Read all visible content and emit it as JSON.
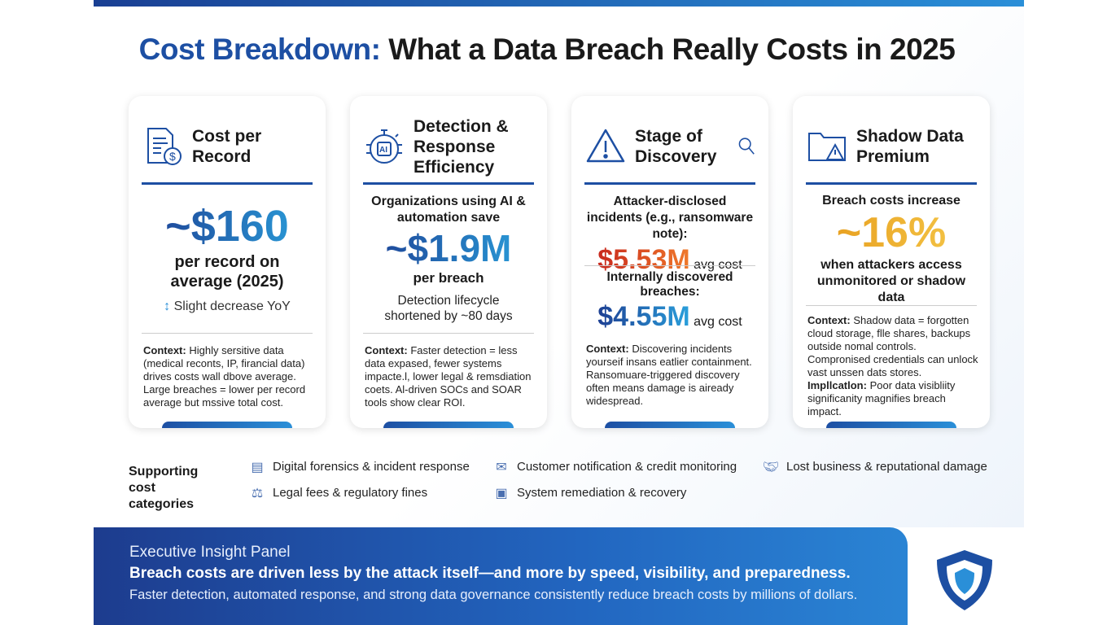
{
  "title": {
    "accent": "Cost Breakdown:",
    "rest": " What a Data Breach Really Costs in 2025"
  },
  "cards": [
    {
      "icon": "invoice-dollar-icon",
      "title": "Cost per Record",
      "value": "~$160",
      "sub": "per record on average (2025)",
      "trend_icon": "up-down-arrow-icon",
      "trend": "Slight decrease YoY",
      "context_label": "Context:",
      "context": " Highly sersitive data (medical reconts, IP, firancial data) drives costs wall dbove average. Large breaches = lower per record average but mssive total cost."
    },
    {
      "icon": "ai-stopwatch-icon",
      "title": "Detection & Response Efficiency",
      "intro": "Organizations using AI & automation save",
      "value": "~$1.9M",
      "sub": "per breach",
      "note": "Detection lifecycle shortened by ~80 days",
      "context_label": "Context:",
      "context": " Faster detection = less data expased, fewer systems impacte.l, lower legal & remsdiation coets. Al-driven SOCs and SOAR tools show clear ROI."
    },
    {
      "icon": "warning-magnifier-icon",
      "title": "Stage of Discovery",
      "intro1": "Attacker-disclosed incidents (e.g., ransomware note):",
      "value1": "$5.53M",
      "unit1": "avg cost",
      "intro2": "Internally discovered breaches:",
      "value2": "$4.55M",
      "unit2": "avg cost",
      "context_label": "Context:",
      "context": " Discovering incidents yourseif insans eatlier containment. Ransomuare-triggered discovery often means damage is aiready widespread."
    },
    {
      "icon": "folder-warning-icon",
      "title": "Shadow Data Premium",
      "intro": "Breach costs increase",
      "value": "~16%",
      "sub": "when attackers access unmonitored or shadow data",
      "context_label": "Context:",
      "context": " Shadow data = forgotten cloud storage, flle shares, backups outside nomal controls. Compronised credentials can unlock vast unssen dats stores.",
      "impl_label": "Impllcatlon:",
      "impl": " Poor data visibliity significanity magnifies breach impact."
    }
  ],
  "supporting": {
    "label": "Supporting cost categories",
    "items": [
      {
        "icon": "forensics-icon",
        "label": "Digital forensics & incident response"
      },
      {
        "icon": "notification-icon",
        "label": "Customer notification & credit monitoring"
      },
      {
        "icon": "handshake-icon",
        "label": "Lost business & reputational damage"
      },
      {
        "icon": "gavel-icon",
        "label": "Legal fees & regulatory fines"
      },
      {
        "icon": "system-icon",
        "label": "System remediation & recovery"
      }
    ]
  },
  "panel": {
    "heading": "Executive Insight Panel",
    "headline": "Breach costs are driven less by the attack itself—and more by speed, visibility, and preparedness.",
    "detail": "Faster detection, automated response, and strong data governance consistently reduce breach costs by millions of dollars.",
    "logo": "shield-logo-icon"
  },
  "colors": {
    "primary": "#1d4fa3",
    "accent": "#2a8fd8",
    "red": "#d63a24",
    "gold": "#eba52a"
  }
}
